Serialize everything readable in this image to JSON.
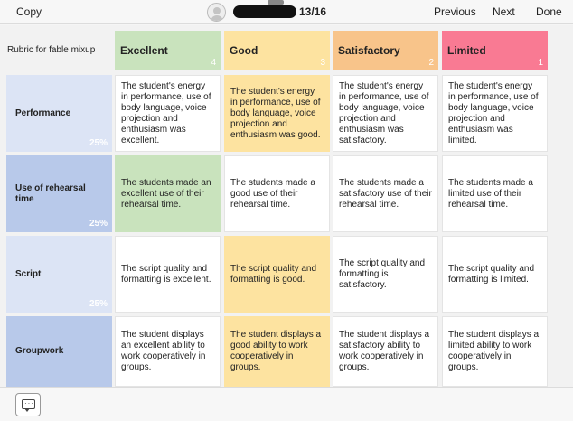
{
  "topbar": {
    "copy_label": "Copy",
    "counter": "13/16",
    "previous_label": "Previous",
    "next_label": "Next",
    "done_label": "Done"
  },
  "rubric": {
    "title": "Rubric for fable mixup",
    "levels": [
      {
        "label": "Excellent",
        "score": "4",
        "color": "#c9e3bd"
      },
      {
        "label": "Good",
        "score": "3",
        "color": "#fde3a0"
      },
      {
        "label": "Satisfactory",
        "score": "2",
        "color": "#f8c48a"
      },
      {
        "label": "Limited",
        "score": "1",
        "color": "#f97a93"
      }
    ],
    "criteria": [
      {
        "name": "Performance",
        "weight": "25%",
        "descriptions": [
          "The student's energy in performance, use of body language, voice projection and enthusiasm was excellent.",
          "The student's energy in performance, use of body language, voice projection and enthusiasm was good.",
          "The student's energy in performance, use of body language, voice projection and enthusiasm was satisfactory.",
          "The student's energy in performance, use of body language, voice projection and enthusiasm was limited."
        ]
      },
      {
        "name": "Use of rehearsal time",
        "weight": "25%",
        "descriptions": [
          "The students made an excellent use of their rehearsal time.",
          "The students made a good use of their rehearsal time.",
          "The students made a satisfactory use of their rehearsal time.",
          "The students made a limited use of their rehearsal time."
        ]
      },
      {
        "name": "Script",
        "weight": "25%",
        "descriptions": [
          "The script quality and formatting is excellent.",
          "The script quality and formatting is good.",
          "The script quality and formatting is satisfactory.",
          "The script quality and formatting is limited."
        ]
      },
      {
        "name": "Groupwork",
        "weight": "",
        "descriptions": [
          "The student displays an excellent ability to work cooperatively in groups.",
          "The student displays a good ability to work cooperatively in groups.",
          "The student displays a satisfactory ability to work cooperatively in groups.",
          "The student displays a limited ability to work cooperatively in groups."
        ]
      }
    ]
  }
}
